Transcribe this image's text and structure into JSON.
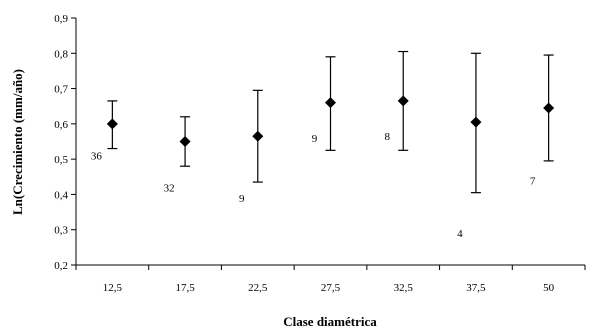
{
  "chart_data": {
    "type": "scatter",
    "xlabel": "Clase diamétrica",
    "ylabel": "Ln(Crecimiento (mm/año)",
    "ylim": [
      0.2,
      0.9
    ],
    "yticks": [
      "0,2",
      "0,3",
      "0,4",
      "0,5",
      "0,6",
      "0,7",
      "0,8",
      "0,9"
    ],
    "categories": [
      "12,5",
      "17,5",
      "22,5",
      "27,5",
      "32,5",
      "37,5",
      "50"
    ],
    "values": [
      0.6,
      0.55,
      0.565,
      0.66,
      0.665,
      0.605,
      0.645
    ],
    "error_low": [
      0.53,
      0.48,
      0.435,
      0.525,
      0.525,
      0.405,
      0.495
    ],
    "error_high": [
      0.665,
      0.62,
      0.695,
      0.79,
      0.805,
      0.8,
      0.795
    ],
    "n_labels": [
      "36",
      "32",
      "9",
      "9",
      "8",
      "4",
      "7"
    ],
    "n_label_y": [
      0.51,
      0.42,
      0.39,
      0.56,
      0.565,
      0.29,
      0.44
    ],
    "grid": false,
    "marker": "diamond",
    "color": "#000000"
  }
}
